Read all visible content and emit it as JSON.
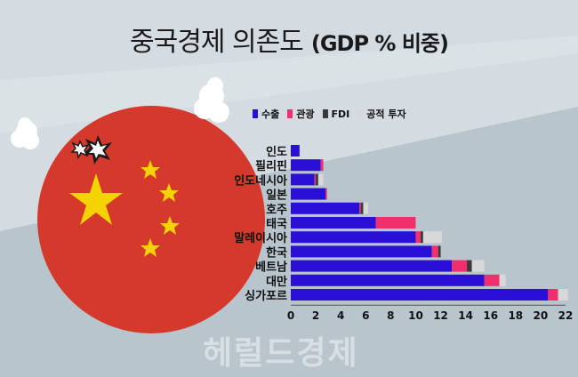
{
  "page": {
    "title_main": "중국경제 의존도",
    "title_sub": "(GDP % 비중)",
    "watermark": "헤럴드경제"
  },
  "colors": {
    "background": "#c9d3da",
    "export": "#2a0fd6",
    "tourism": "#f0306c",
    "fdi": "#3a3a3a",
    "public_investment": "#d8d8d8",
    "flag_red": "#d4392c",
    "flag_star": "#f5d300"
  },
  "legend": [
    {
      "label": "수출",
      "color": "#2a0fd6"
    },
    {
      "label": "관광",
      "color": "#f0306c"
    },
    {
      "label": "FDI",
      "color": "#3a3a3a"
    },
    {
      "label": "공적 투자",
      "color": "#d8d8d8"
    }
  ],
  "chart_data": {
    "type": "bar",
    "orientation": "horizontal",
    "stacked": true,
    "title": "중국경제 의존도 (GDP % 비중)",
    "categories": [
      "인도",
      "필리핀",
      "인도네시아",
      "일본",
      "호주",
      "태국",
      "말레이시아",
      "한국",
      "베트남",
      "대만",
      "싱가포르"
    ],
    "series": [
      {
        "name": "수출",
        "values": [
          0.7,
          2.4,
          1.9,
          2.8,
          5.5,
          6.8,
          10.0,
          11.3,
          12.9,
          15.5,
          20.6
        ]
      },
      {
        "name": "관광",
        "values": [
          0.0,
          0.2,
          0.1,
          0.1,
          0.1,
          3.2,
          0.4,
          0.5,
          1.2,
          1.2,
          0.8
        ]
      },
      {
        "name": "FDI",
        "values": [
          0.0,
          0.0,
          0.2,
          0.0,
          0.2,
          0.0,
          0.2,
          0.2,
          0.4,
          0.0,
          0.0
        ]
      },
      {
        "name": "공적 투자",
        "values": [
          0.0,
          0.0,
          0.4,
          0.0,
          0.4,
          0.0,
          1.5,
          0.0,
          1.0,
          0.5,
          0.8
        ]
      }
    ],
    "xlim": [
      0,
      22
    ],
    "xticks": [
      "0",
      "2",
      "4",
      "6",
      "8",
      "10",
      "12",
      "14",
      "16",
      "18",
      "20",
      "22"
    ],
    "legend_position": "top"
  }
}
